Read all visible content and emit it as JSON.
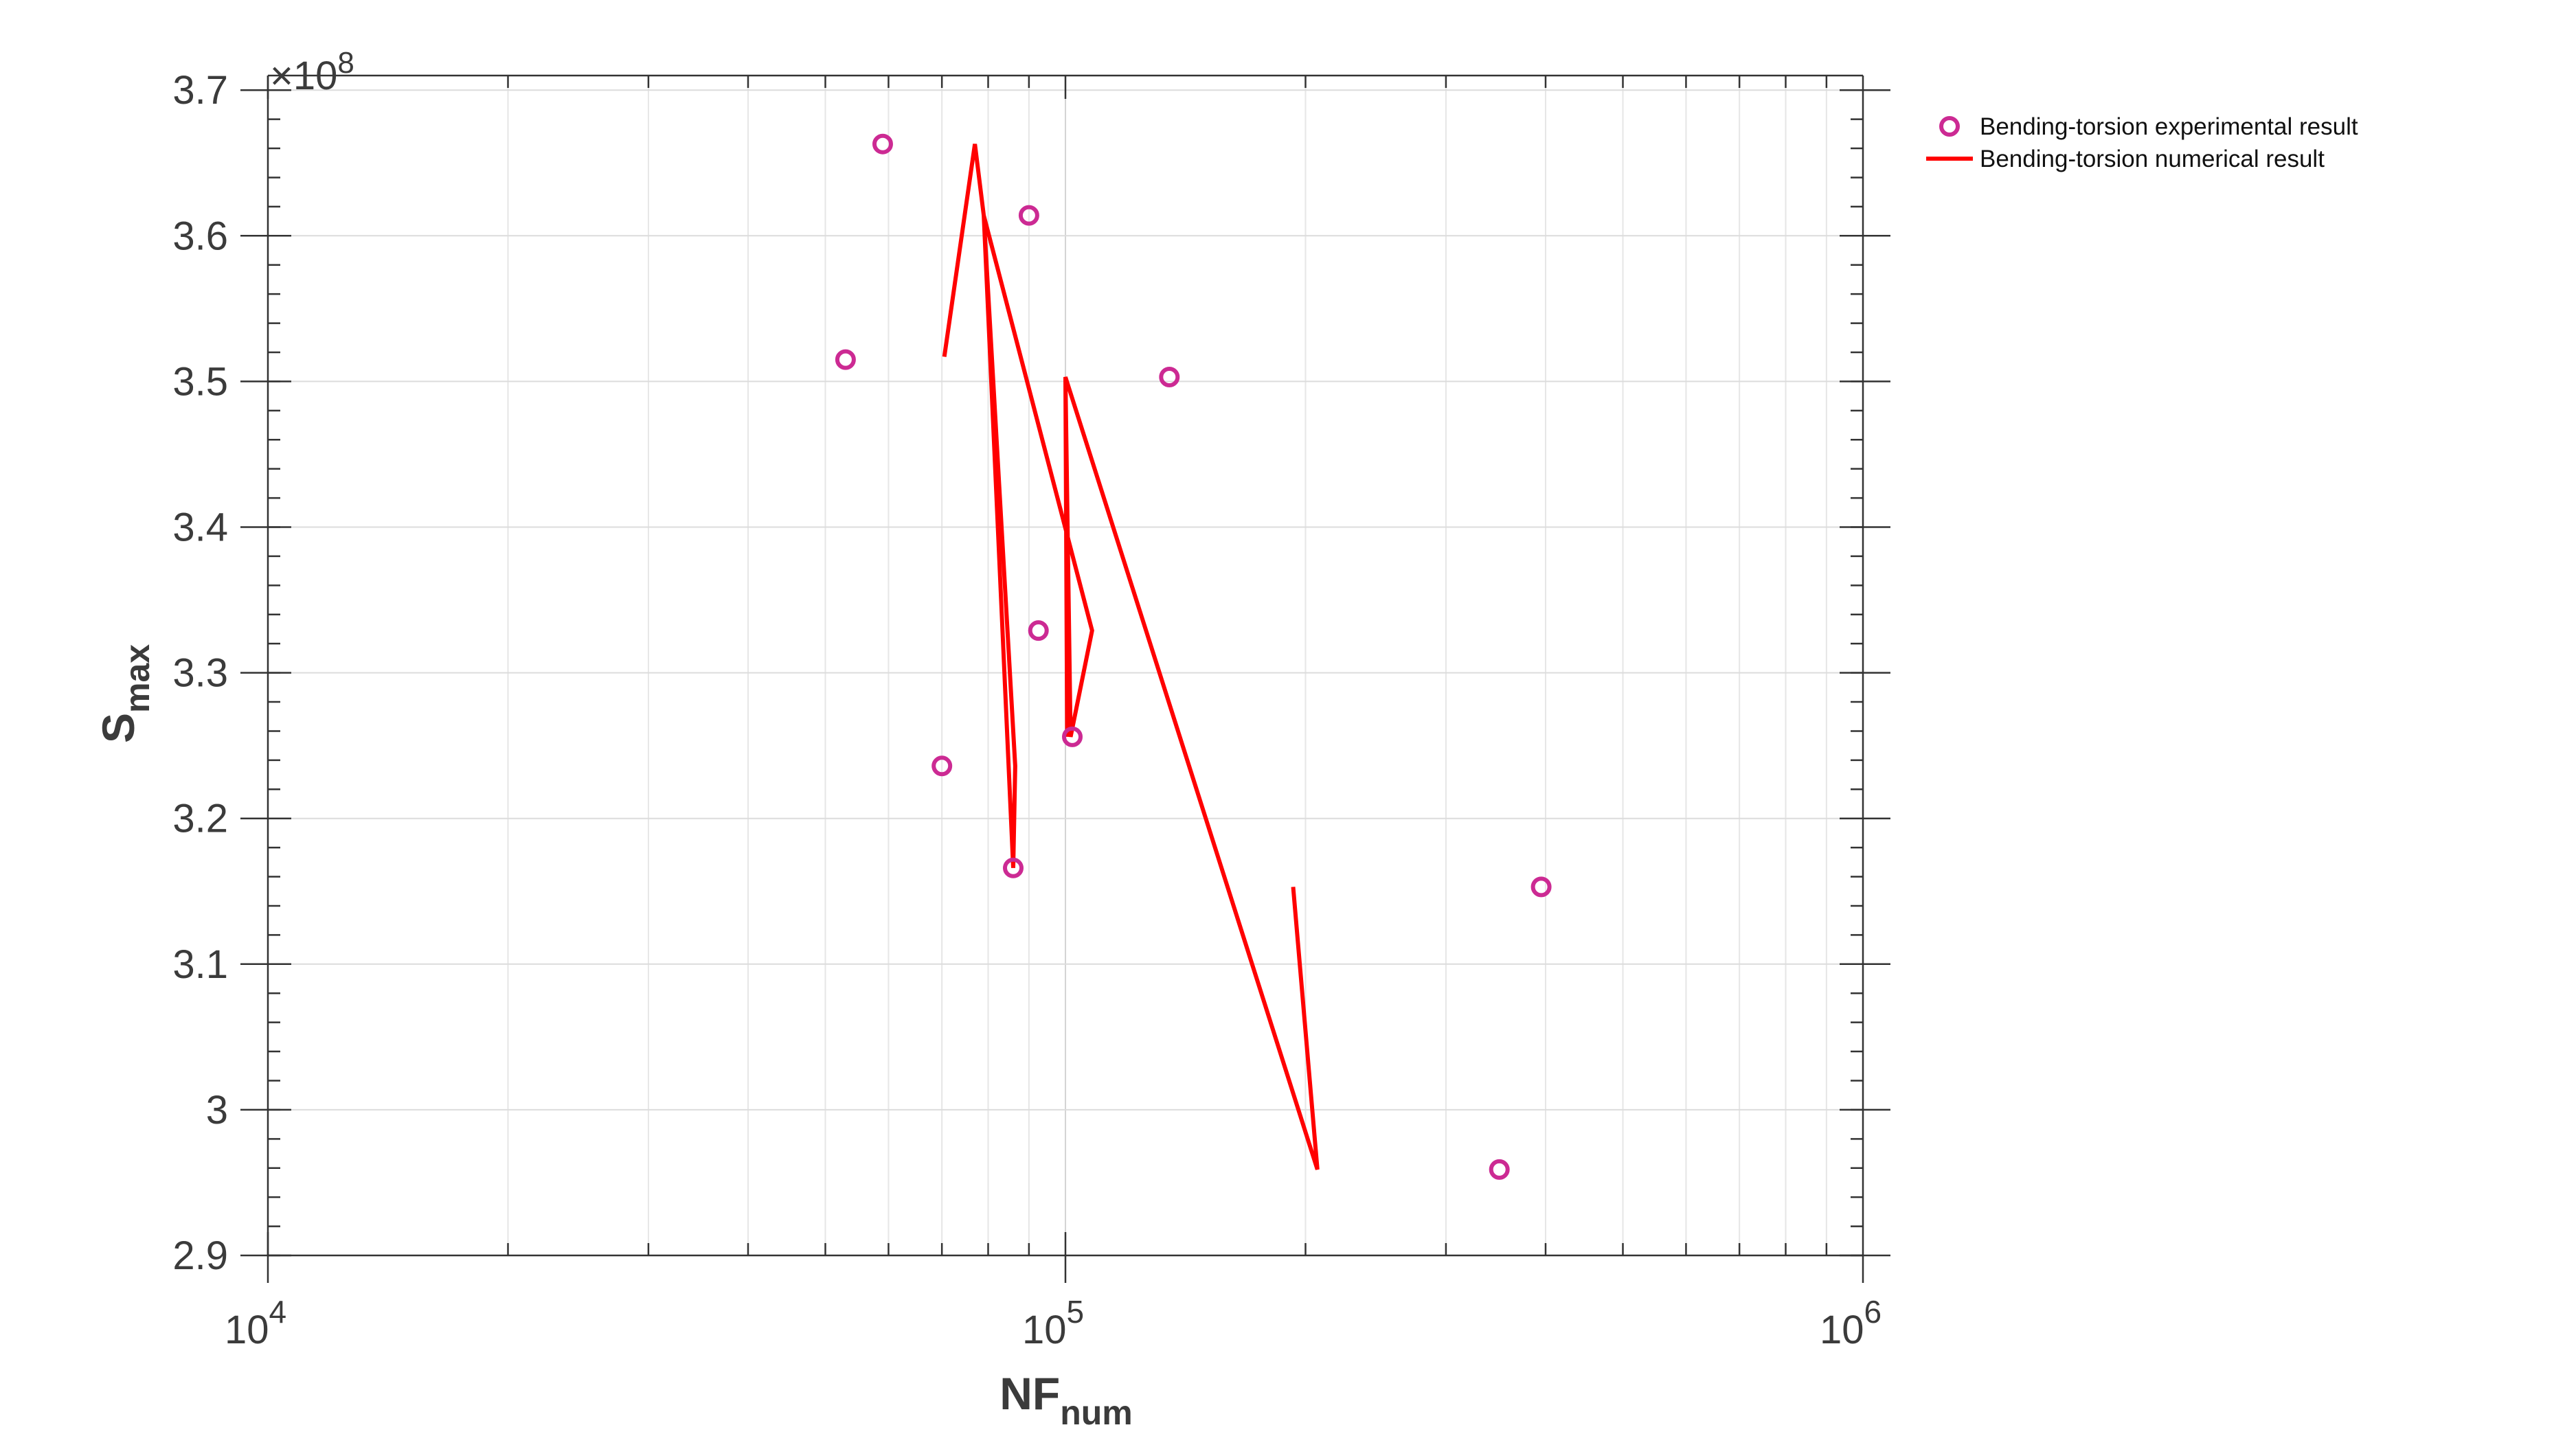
{
  "chart_data": {
    "type": "scatter",
    "xscale": "log",
    "xlim": [
      10000,
      1000000
    ],
    "ylim": [
      290000000,
      371000000
    ],
    "grid": true,
    "legend_position": "outside-top-right",
    "xlabel": {
      "main": "NF",
      "sub": "num"
    },
    "ylabel": {
      "main": "S",
      "sub": "max"
    },
    "y_exponent_label": {
      "prefix": "×10",
      "power": "8"
    },
    "x_ticks": [
      {
        "value": 10000,
        "base": "10",
        "power": "4"
      },
      {
        "value": 100000,
        "base": "10",
        "power": "5"
      },
      {
        "value": 1000000,
        "base": "10",
        "power": "6"
      }
    ],
    "y_ticks": [
      {
        "value": 290000000,
        "label": "2.9"
      },
      {
        "value": 300000000,
        "label": "3"
      },
      {
        "value": 310000000,
        "label": "3.1"
      },
      {
        "value": 320000000,
        "label": "3.2"
      },
      {
        "value": 330000000,
        "label": "3.3"
      },
      {
        "value": 340000000,
        "label": "3.4"
      },
      {
        "value": 350000000,
        "label": "3.5"
      },
      {
        "value": 360000000,
        "label": "3.6"
      },
      {
        "value": 370000000,
        "label": "3.7"
      }
    ],
    "series": [
      {
        "name": "Bending-torsion experimental result",
        "kind": "markers",
        "color": "#cc2a93",
        "points": [
          {
            "x": 53000,
            "y": 351500000
          },
          {
            "x": 59000,
            "y": 366300000
          },
          {
            "x": 70000,
            "y": 323600000
          },
          {
            "x": 86000,
            "y": 316600000
          },
          {
            "x": 90000,
            "y": 361400000
          },
          {
            "x": 92500,
            "y": 332900000
          },
          {
            "x": 102000,
            "y": 325600000
          },
          {
            "x": 135000,
            "y": 350300000
          },
          {
            "x": 350000,
            "y": 295900000
          },
          {
            "x": 395000,
            "y": 315300000
          }
        ]
      },
      {
        "name": "Bending-torsion numerical result",
        "kind": "line",
        "color": "#ff0000",
        "points": [
          {
            "x": 70500,
            "y": 351700000
          },
          {
            "x": 77000,
            "y": 366300000
          },
          {
            "x": 79000,
            "y": 361400000
          },
          {
            "x": 86500,
            "y": 323600000
          },
          {
            "x": 86000,
            "y": 316600000
          },
          {
            "x": 79000,
            "y": 361400000
          },
          {
            "x": 108000,
            "y": 332900000
          },
          {
            "x": 101500,
            "y": 325600000
          },
          {
            "x": 100000,
            "y": 350300000
          },
          {
            "x": 100500,
            "y": 325600000
          },
          {
            "x": 100000,
            "y": 350300000
          },
          {
            "x": 207000,
            "y": 295900000
          },
          {
            "x": 193000,
            "y": 315300000
          }
        ]
      }
    ]
  }
}
